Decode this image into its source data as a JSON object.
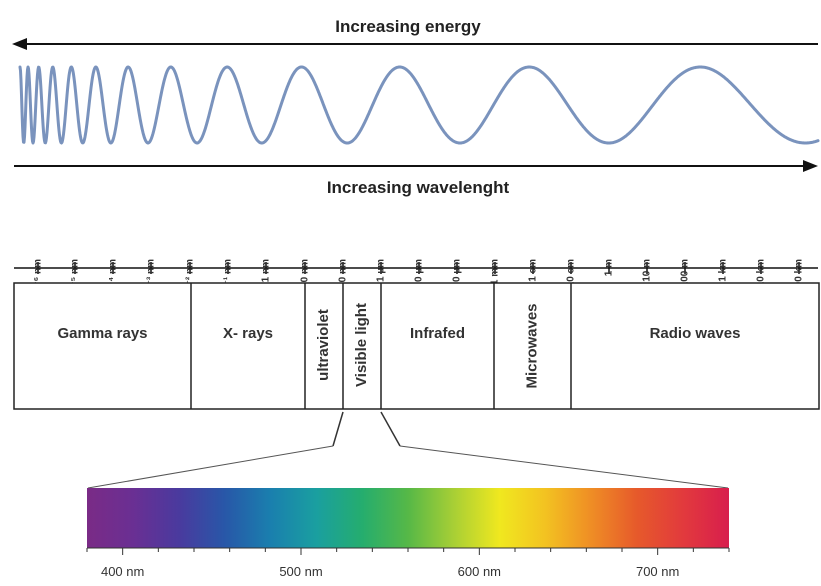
{
  "energy_label": "Increasing energy",
  "wavelength_label": "Increasing wavelenght",
  "scale_ticks": [
    "10⁻⁶ nm",
    "10⁻⁵ nm",
    "10⁻⁴ nm",
    "10⁻³ nm",
    "10⁻² nm",
    "10⁻¹ nm",
    "1 nm",
    "10 nm",
    "100 nm",
    "1 µm",
    "10 µm",
    "100 µm",
    "1 mm",
    "1 cm",
    "10 cm",
    "1 m",
    "10 m",
    "100 m",
    "1 km",
    "10 km",
    "100 km"
  ],
  "bands": [
    {
      "key": "gamma",
      "label": "Gamma rays",
      "orientation": "horizontal"
    },
    {
      "key": "xray",
      "label": "X- rays",
      "orientation": "horizontal"
    },
    {
      "key": "uv",
      "label": "ultraviolet",
      "orientation": "vertical"
    },
    {
      "key": "visible",
      "label": "Visible light",
      "orientation": "vertical"
    },
    {
      "key": "ir",
      "label": "Infrafed",
      "orientation": "horizontal"
    },
    {
      "key": "micro",
      "label": "Microwaves",
      "orientation": "vertical"
    },
    {
      "key": "radio",
      "label": "Radio waves",
      "orientation": "horizontal"
    }
  ],
  "visible_scale": {
    "labels": [
      "400 nm",
      "500 nm",
      "600 nm",
      "700 nm"
    ],
    "colors": [
      "#7a2b86",
      "#6a2f93",
      "#4a3a9e",
      "#2857a8",
      "#1a7fae",
      "#1a9fa0",
      "#25ad6e",
      "#56b847",
      "#a8cf35",
      "#f0e81f",
      "#f3c221",
      "#ef8d25",
      "#e6592b",
      "#e23a3d",
      "#d81e4d"
    ]
  },
  "colors": {
    "axis": "#111111",
    "wave": "#7a93bd",
    "box": "#222222"
  }
}
